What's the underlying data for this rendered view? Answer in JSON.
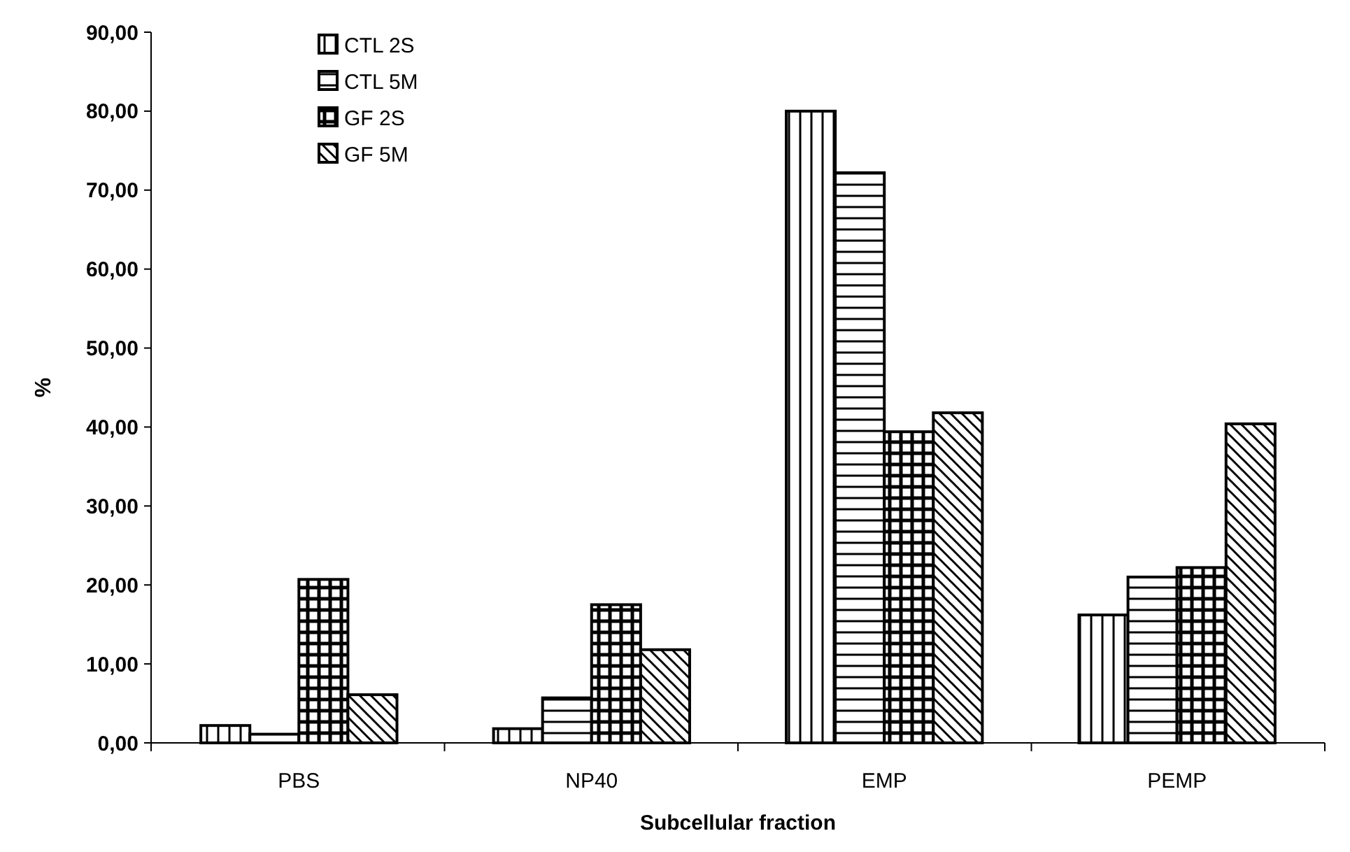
{
  "chart_data": {
    "type": "bar",
    "xlabel": "Subcellular fraction",
    "ylabel": "%",
    "categories": [
      "PBS",
      "NP40",
      "EMP",
      "PEMP"
    ],
    "series": [
      {
        "name": "CTL 2S",
        "color": "#000000",
        "values": [
          2.2,
          1.8,
          80.0,
          16.2
        ]
      },
      {
        "name": "CTL 5M",
        "color": "#000000",
        "values": [
          1.1,
          5.7,
          72.2,
          21.0
        ]
      },
      {
        "name": "GF 2S",
        "color": "#000000",
        "values": [
          20.7,
          17.5,
          39.4,
          22.2
        ]
      },
      {
        "name": "GF 5M",
        "color": "#000000",
        "values": [
          6.1,
          11.8,
          41.8,
          40.4
        ]
      }
    ],
    "ylim": [
      0,
      90
    ],
    "yticks": [
      {
        "value": 0,
        "label": "0,00"
      },
      {
        "value": 10,
        "label": "10,00"
      },
      {
        "value": 20,
        "label": "20,00"
      },
      {
        "value": 30,
        "label": "30,00"
      },
      {
        "value": 40,
        "label": "40,00"
      },
      {
        "value": 50,
        "label": "50,00"
      },
      {
        "value": 60,
        "label": "60,00"
      },
      {
        "value": 70,
        "label": "70,00"
      },
      {
        "value": 80,
        "label": "80,00"
      },
      {
        "value": 90,
        "label": "90,00"
      }
    ],
    "grid": false,
    "legend": "top left"
  }
}
